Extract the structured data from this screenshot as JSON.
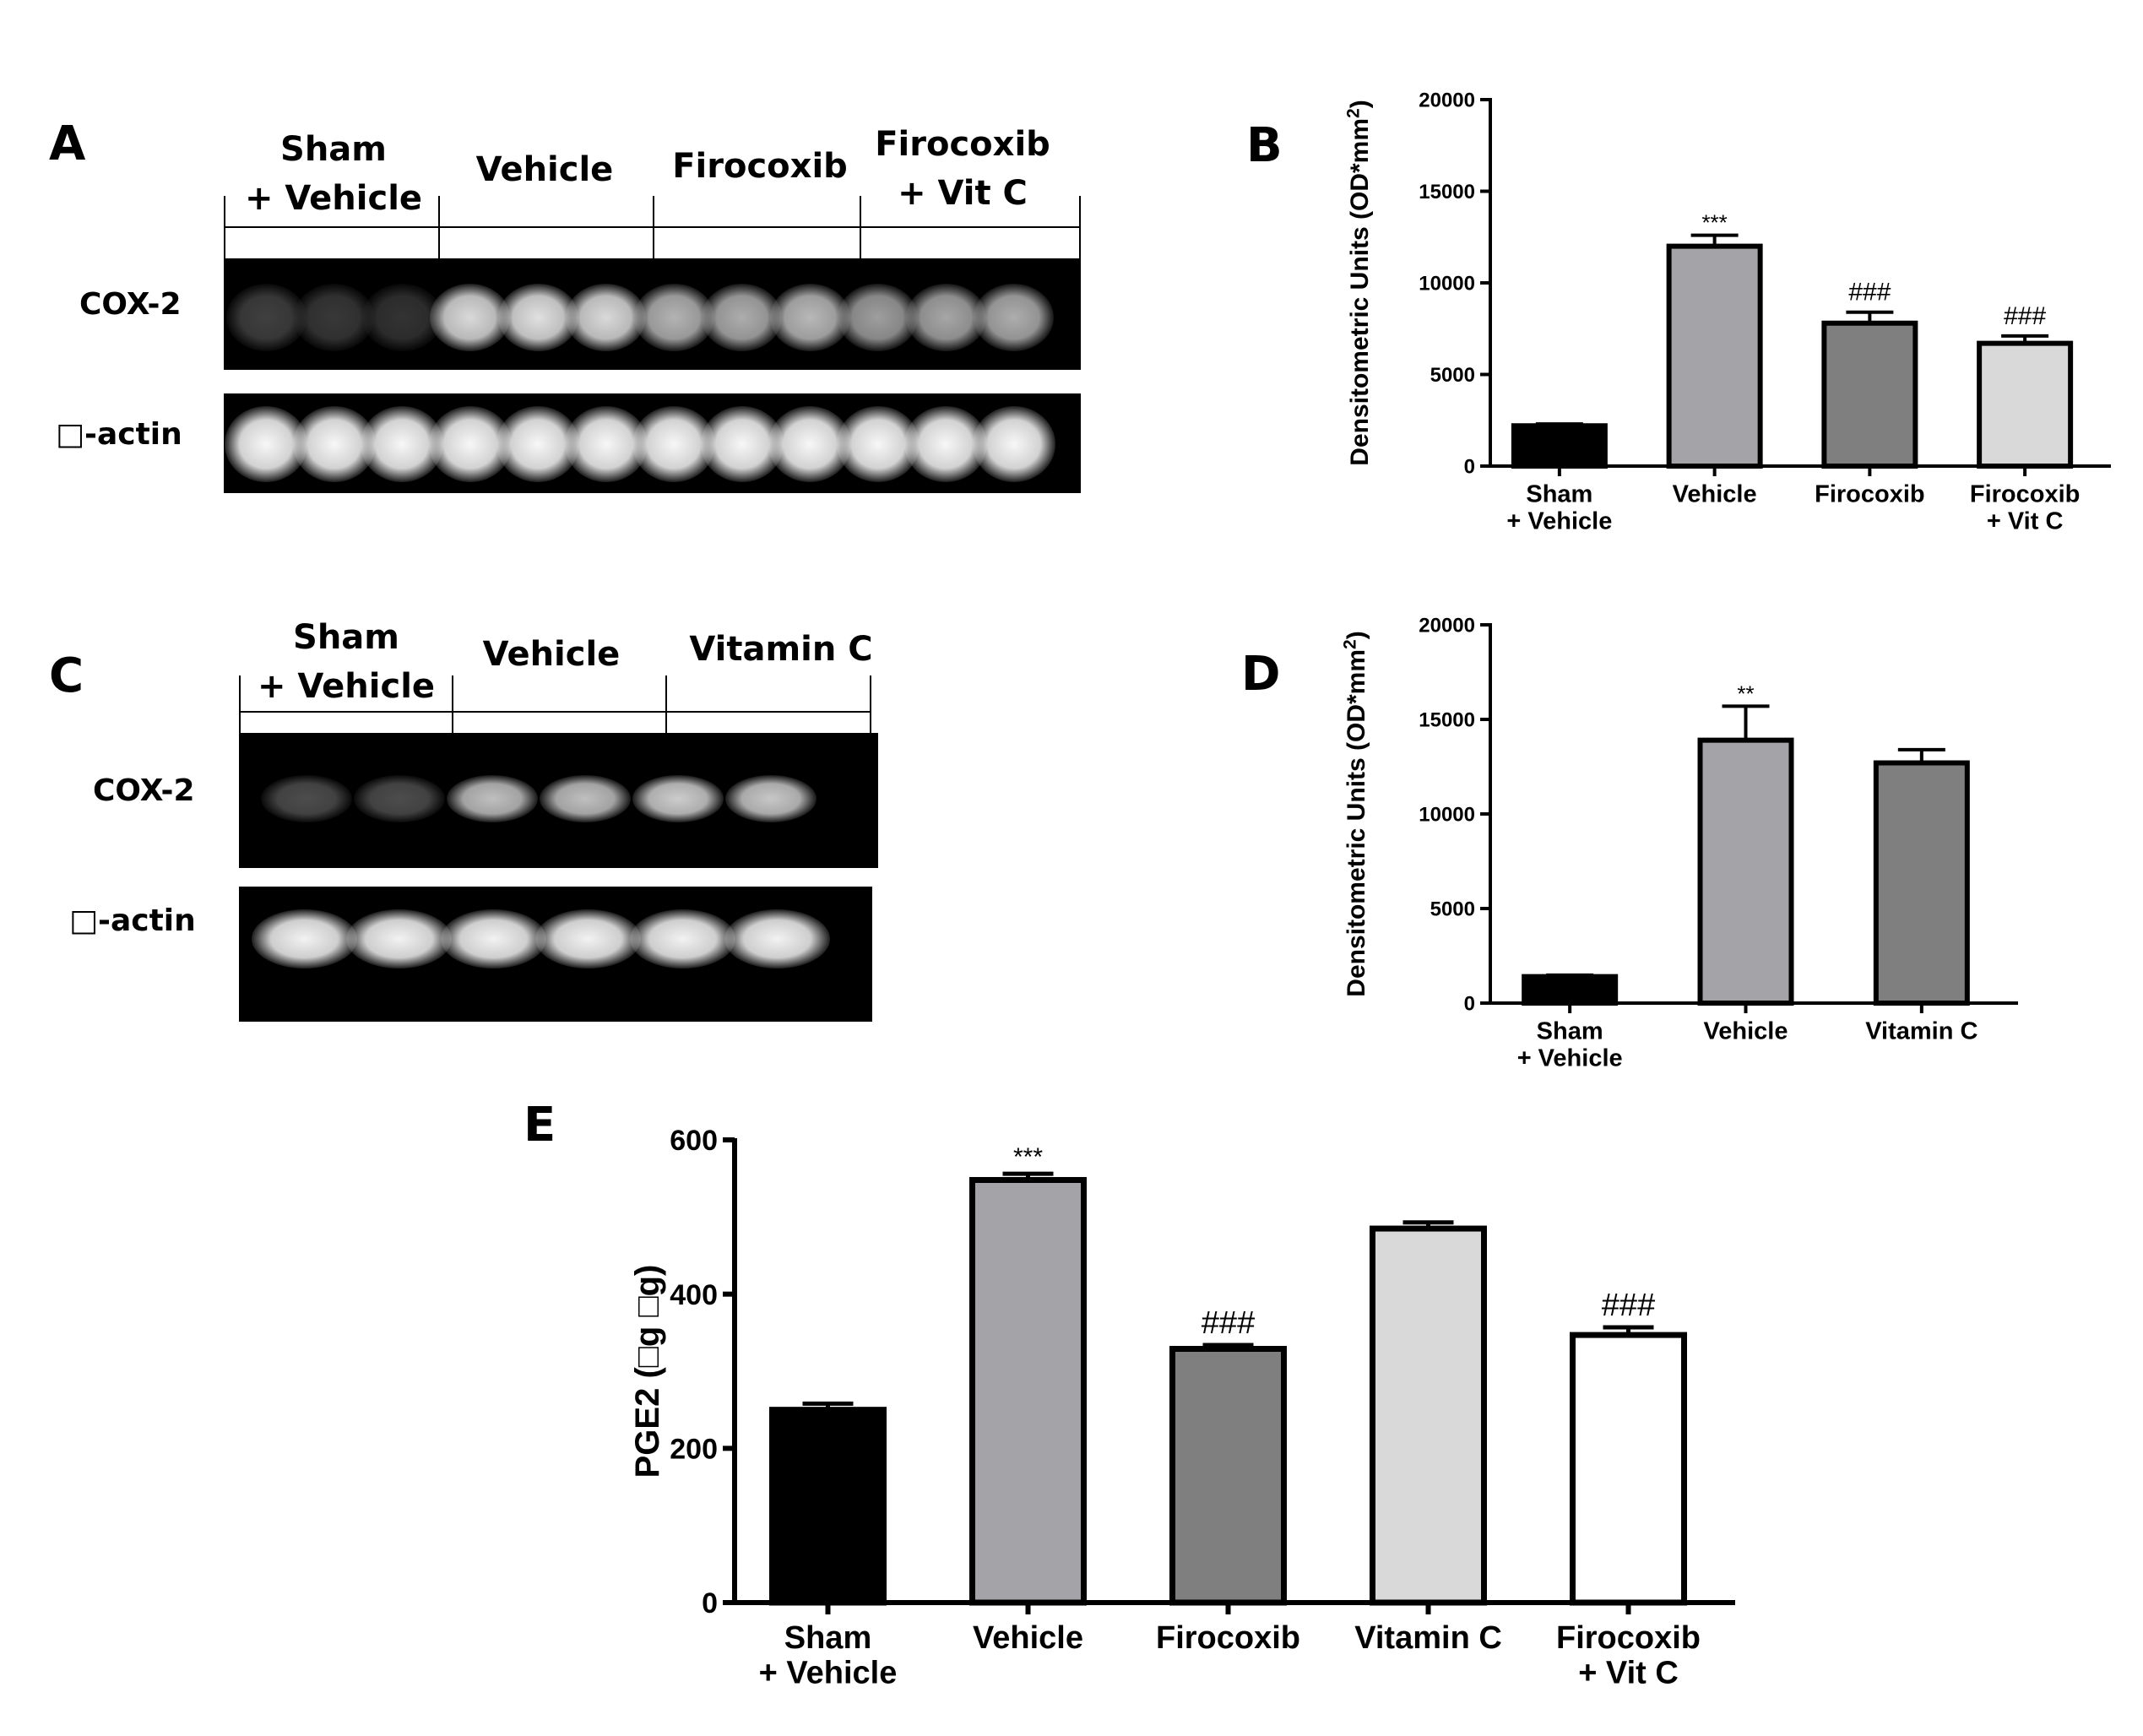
{
  "panels": {
    "A": {
      "letter": "A",
      "groups": [
        "Sham\n+ Vehicle",
        "Vehicle",
        "Firocoxib",
        "Firocoxib\n+ Vit C"
      ],
      "rows": [
        "COX-2",
        "□-actin"
      ],
      "cox2_intensity": [
        0.25,
        0.22,
        0.2,
        0.85,
        0.88,
        0.85,
        0.7,
        0.68,
        0.72,
        0.62,
        0.65,
        0.68
      ],
      "actin_intensity": [
        0.97,
        0.97,
        0.97,
        0.97,
        0.97,
        0.97,
        0.97,
        0.97,
        0.97,
        0.97,
        0.97,
        0.97
      ]
    },
    "C": {
      "letter": "C",
      "groups": [
        "Sham\n+ Vehicle",
        "Vehicle",
        "Vitamin C"
      ],
      "rows": [
        "COX-2",
        "□-actin"
      ],
      "cox2_intensity": [
        0.3,
        0.3,
        0.75,
        0.75,
        0.8,
        0.78
      ],
      "actin_intensity": [
        0.95,
        0.95,
        0.95,
        0.95,
        0.95,
        0.95
      ]
    },
    "B": {
      "letter": "B"
    },
    "D": {
      "letter": "D"
    },
    "E": {
      "letter": "E"
    }
  },
  "chart_data": [
    {
      "id": "B",
      "type": "bar",
      "categories": [
        "Sham\n+ Vehicle",
        "Vehicle",
        "Firocoxib",
        "Firocoxib\n+ Vit C"
      ],
      "values": [
        2200,
        12000,
        7800,
        6700
      ],
      "errors": [
        100,
        600,
        600,
        400
      ],
      "annotations": [
        "",
        "***",
        "###",
        "###"
      ],
      "colors": [
        "#000000",
        "#a4a4a8",
        "#7f7f7f",
        "#d9d9d9"
      ],
      "ylabel": "Densitometric Units (OD*mm",
      "ylabel_sup": "2",
      "ylabel_close": ")",
      "ylim": [
        0,
        20000
      ],
      "yticks": [
        0,
        5000,
        10000,
        15000,
        20000
      ]
    },
    {
      "id": "D",
      "type": "bar",
      "categories": [
        "Sham\n+ Vehicle",
        "Vehicle",
        "Vitamin C"
      ],
      "values": [
        1400,
        13900,
        12700
      ],
      "errors": [
        80,
        1800,
        700
      ],
      "annotations": [
        "",
        "**",
        ""
      ],
      "colors": [
        "#000000",
        "#a4a4a8",
        "#7f7f7f"
      ],
      "ylabel": "Densitometric Units (OD*mm",
      "ylabel_sup": "2",
      "ylabel_close": ")",
      "ylim": [
        0,
        20000
      ],
      "yticks": [
        0,
        5000,
        10000,
        15000,
        20000
      ]
    },
    {
      "id": "E",
      "type": "bar",
      "categories": [
        "Sham\n+ Vehicle",
        "Vehicle",
        "Firocoxib",
        "Vitamin C",
        "Firocoxib\n+ Vit C"
      ],
      "values": [
        250,
        548,
        329,
        485,
        347
      ],
      "errors": [
        8,
        8,
        5,
        8,
        10
      ],
      "annotations": [
        "",
        "***",
        "###",
        "",
        "###"
      ],
      "colors": [
        "#000000",
        "#a4a4a8",
        "#7f7f7f",
        "#d9d9d9",
        "#ffffff"
      ],
      "ylabel": "PGE2 (□g □g)",
      "ylim": [
        0,
        600
      ],
      "yticks": [
        0,
        200,
        400,
        600
      ]
    }
  ]
}
